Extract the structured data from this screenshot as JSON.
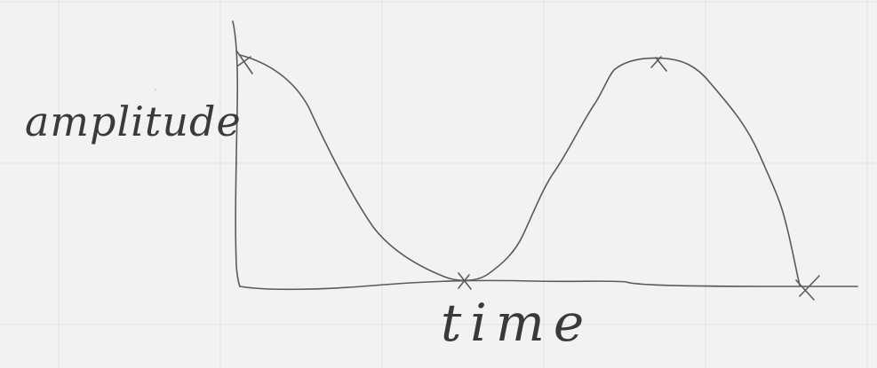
{
  "whiteboard": {
    "background_color": "#f2f2f2",
    "grid_color": "#e3e3e3",
    "ink_color": "#5a5a5a"
  },
  "chart_data": {
    "type": "line",
    "title": "",
    "xlabel": "time",
    "ylabel": "amplitude",
    "grid": true,
    "marker": "x",
    "marked_points": 4,
    "description_shape": "hand-drawn wave starting high, dipping to the time axis, rising to a second peak, then falling back to the axis"
  }
}
